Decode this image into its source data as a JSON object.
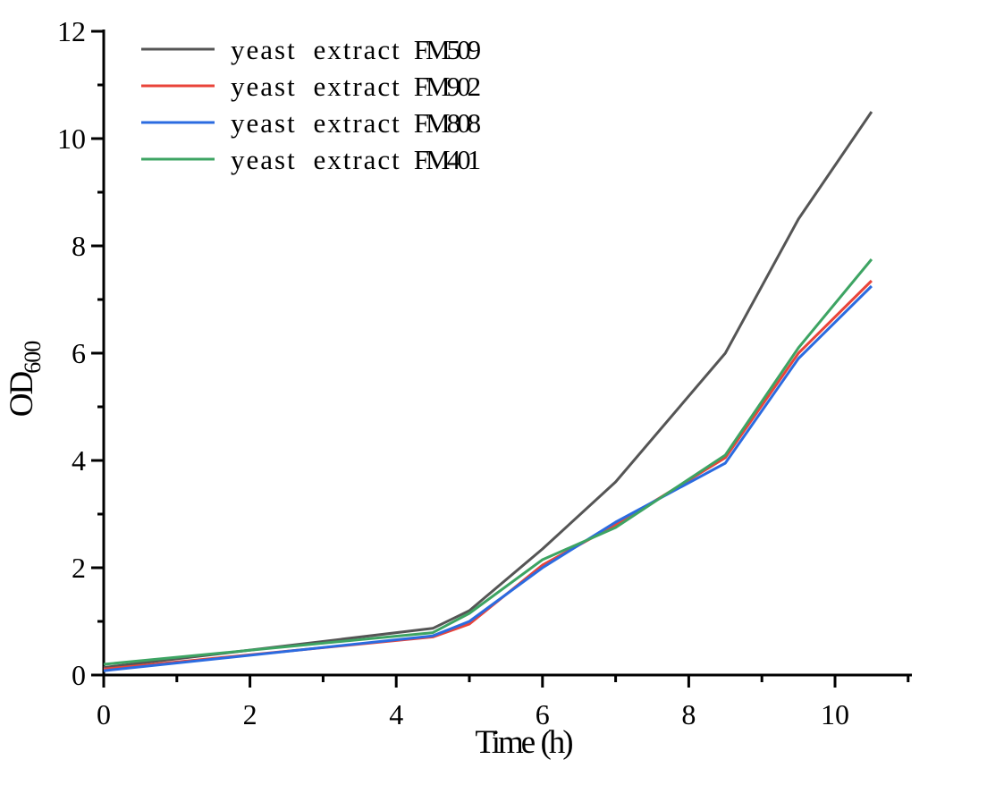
{
  "chart_data": {
    "type": "line",
    "title": "",
    "xlabel": "Time (h)",
    "ylabel": "OD600",
    "ylabel_main": "OD",
    "ylabel_sub": "600",
    "xlim": [
      0,
      11
    ],
    "ylim": [
      0,
      12
    ],
    "grid": false,
    "legend_position": "upper-left",
    "axis_color": "#000000",
    "background_color": "#ffffff",
    "x_major_ticks": [
      0,
      2,
      4,
      6,
      8,
      10
    ],
    "x_minor_ticks": [
      1,
      3,
      5,
      7,
      9,
      11
    ],
    "y_major_ticks": [
      0,
      2,
      4,
      6,
      8,
      10,
      12
    ],
    "y_minor_ticks": [
      1,
      3,
      5,
      7,
      9,
      11
    ],
    "x": [
      0,
      4.5,
      5,
      6,
      7,
      8.5,
      9.5,
      10.5
    ],
    "series": [
      {
        "name": "yeast extract FM509",
        "prefix": "yeast extract",
        "code": "FM509",
        "color": "#555555",
        "values": [
          0.14,
          0.87,
          1.2,
          2.35,
          3.6,
          6.0,
          8.5,
          10.5
        ]
      },
      {
        "name": "yeast extract FM902",
        "prefix": "yeast extract",
        "code": "FM902",
        "color": "#e9443a",
        "values": [
          0.11,
          0.71,
          0.95,
          2.05,
          2.8,
          4.05,
          6.0,
          7.35
        ]
      },
      {
        "name": "yeast extract FM808",
        "prefix": "yeast extract",
        "code": "FM808",
        "color": "#2b6be0",
        "values": [
          0.08,
          0.73,
          1.0,
          2.0,
          2.85,
          3.95,
          5.9,
          7.25
        ]
      },
      {
        "name": "yeast extract FM401",
        "prefix": "yeast extract",
        "code": "FM401",
        "color": "#3da463",
        "values": [
          0.2,
          0.79,
          1.15,
          2.15,
          2.75,
          4.1,
          6.1,
          7.75
        ]
      }
    ]
  }
}
